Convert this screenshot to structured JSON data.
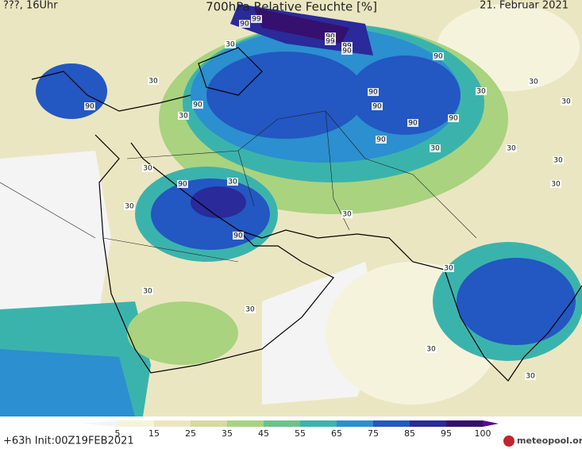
{
  "header": {
    "left": "???, 16Uhr",
    "title": "700hPa Relative Feuchte [%]",
    "right": "21. Februar 2021"
  },
  "footer": {
    "run": "+63h Init:00Z19FEB2021",
    "logo": "meteopool.org"
  },
  "map": {
    "contour_labels": [
      99,
      90,
      90,
      99,
      99,
      90,
      90,
      30,
      30,
      30,
      30,
      30,
      90,
      90,
      90,
      90,
      90,
      90,
      90,
      30,
      30,
      30,
      30,
      30,
      30,
      90,
      30,
      30,
      30,
      90,
      30,
      30,
      30,
      30,
      30
    ],
    "colorbar": {
      "ticks": [
        5,
        15,
        25,
        35,
        45,
        55,
        65,
        75,
        85,
        95,
        100
      ],
      "colors": [
        "#f4f4f4",
        "#f6f3dd",
        "#ebe6c2",
        "#d6d9a0",
        "#a9d37f",
        "#6cc28a",
        "#3bb3ad",
        "#2b8fd0",
        "#2357c2",
        "#2a2a9a",
        "#35106f",
        "#5a0a8a"
      ]
    }
  }
}
